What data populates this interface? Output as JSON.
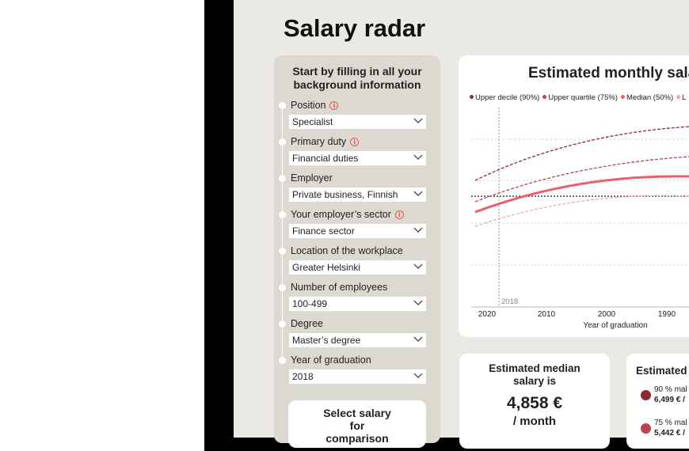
{
  "header": {
    "title": "Salary radar"
  },
  "form": {
    "heading": "Start by filling in all your background information",
    "fields": [
      {
        "label": "Position",
        "value": "Specialist"
      },
      {
        "label": "Primary duty",
        "value": "Financial duties"
      },
      {
        "label": "Employer",
        "value": "Private business, Finnish"
      },
      {
        "label": "Your employer’s sector",
        "value": "Finance sector"
      },
      {
        "label": "Location of the workplace",
        "value": "Greater Helsinki"
      },
      {
        "label": "Number of employees",
        "value": "100-499"
      },
      {
        "label": "Degree",
        "value": "Master’s degree"
      },
      {
        "label": "Year of graduation",
        "value": "2018"
      }
    ],
    "compare_button": "Select salary for comparison"
  },
  "chart": {
    "title": "Estimated monthly sala",
    "legend": [
      "Upper decile (90%)",
      "Upper quartile (75%)",
      "Median (50%)",
      "L"
    ],
    "marker_label": "2018",
    "x_ticks": [
      "2020",
      "2010",
      "2000",
      "1990"
    ],
    "x_label": "Year of graduation"
  },
  "median_card": {
    "heading": "Estimated median salary is",
    "value": "4,858 €",
    "unit": "/ month"
  },
  "distribution_card": {
    "heading": "Estimated",
    "items": [
      {
        "label": "90 % mal",
        "value": "6,499 € /"
      },
      {
        "label": "75 % mal",
        "value": "5,442 € /"
      }
    ]
  }
}
